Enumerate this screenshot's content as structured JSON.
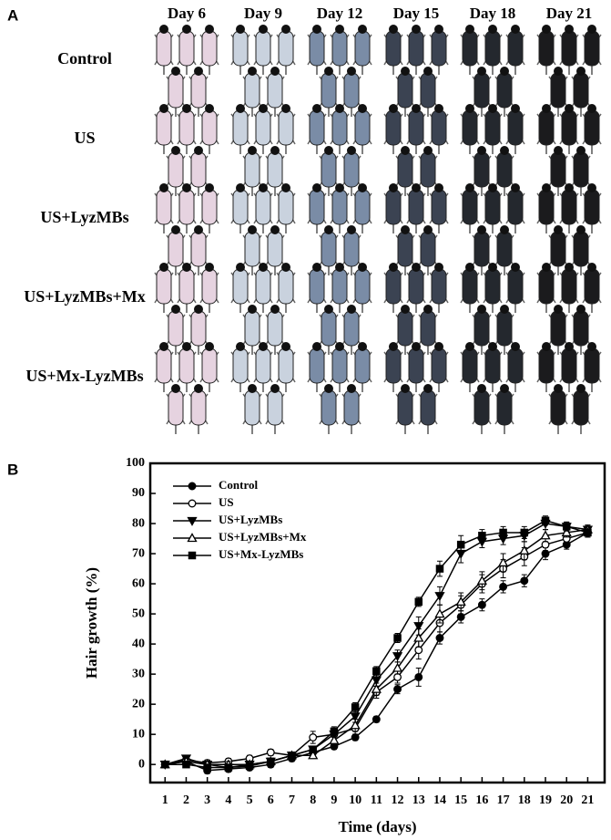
{
  "figure_panels": {
    "a_label": "A",
    "b_label": "B",
    "days": [
      "Day 6",
      "Day 9",
      "Day 12",
      "Day 15",
      "Day 18",
      "Day 21"
    ],
    "groups": [
      "Control",
      "US",
      "US+LyzMBs",
      "US+LyzMBs+Mx",
      "US+Mx-LyzMBs"
    ]
  },
  "chart_data": {
    "type": "line",
    "x_label": "Time (days)",
    "y_label": "Hair growth (%)",
    "x": [
      1,
      2,
      3,
      4,
      5,
      6,
      7,
      8,
      9,
      10,
      11,
      12,
      13,
      14,
      15,
      16,
      17,
      18,
      19,
      20,
      21
    ],
    "xlim": [
      0.3,
      21.8
    ],
    "xticks": [
      1,
      2,
      3,
      4,
      5,
      6,
      7,
      8,
      9,
      10,
      11,
      12,
      13,
      14,
      15,
      16,
      17,
      18,
      19,
      20,
      21
    ],
    "ylim": [
      -6,
      100
    ],
    "yticks": [
      0,
      10,
      20,
      30,
      40,
      50,
      60,
      70,
      80,
      90,
      100
    ],
    "legend": "upper left",
    "series": [
      {
        "name": "Control",
        "color": "#000000",
        "marker": "circle",
        "filled": true,
        "values": [
          0,
          1,
          -2,
          -1.5,
          -1,
          0,
          2,
          4,
          6,
          9,
          15,
          25,
          29,
          42,
          49,
          53,
          59,
          61,
          70,
          73,
          77
        ],
        "errors": [
          1,
          1,
          1,
          1,
          1,
          1,
          1,
          1,
          1,
          1,
          1,
          1.5,
          3,
          2,
          2,
          2,
          2,
          2,
          2,
          1.5,
          1.5
        ]
      },
      {
        "name": "US",
        "color": "#000000",
        "marker": "circle",
        "filled": false,
        "values": [
          0,
          1.5,
          0.5,
          1,
          2,
          4,
          3,
          9,
          10,
          12,
          24,
          29,
          38,
          47,
          53,
          60,
          65,
          69,
          73,
          75,
          77
        ],
        "errors": [
          1,
          1,
          1,
          1,
          1,
          1,
          1,
          2,
          2,
          2,
          2,
          2,
          3,
          3,
          3,
          3,
          3,
          3,
          2,
          2,
          1.5
        ]
      },
      {
        "name": "US+LyzMBs",
        "color": "#000000",
        "marker": "triangle-down",
        "filled": true,
        "values": [
          0,
          2,
          0,
          -1,
          0,
          1,
          3,
          5,
          10,
          16,
          28,
          36,
          46,
          56,
          70,
          74,
          75,
          76,
          80,
          79,
          78
        ],
        "errors": [
          1,
          1,
          1,
          1,
          1,
          1,
          1,
          1,
          2,
          2,
          2,
          2,
          3,
          3,
          3,
          2,
          2,
          2,
          2,
          1.5,
          1.5
        ]
      },
      {
        "name": "US+LyzMBs+Mx",
        "color": "#000000",
        "marker": "triangle-up",
        "filled": false,
        "values": [
          0,
          1,
          0,
          0,
          0,
          1,
          3,
          3,
          8,
          13,
          25,
          32,
          42,
          50,
          54,
          61,
          67,
          71,
          76,
          77,
          78
        ],
        "errors": [
          1,
          1,
          1,
          1,
          1,
          1,
          1,
          1,
          2,
          2,
          2,
          2,
          3,
          3,
          3,
          3,
          3,
          3,
          2,
          1.5,
          1.5
        ]
      },
      {
        "name": "US+Mx-LyzMBs",
        "color": "#000000",
        "marker": "square",
        "filled": true,
        "values": [
          0,
          0,
          -1,
          -1,
          -0.5,
          1,
          3,
          5,
          11,
          19,
          31,
          42,
          54,
          65,
          73,
          76,
          77,
          77,
          81,
          79,
          77
        ],
        "errors": [
          1,
          1,
          1,
          1,
          1,
          1,
          1,
          1,
          1.5,
          1.5,
          1.5,
          1.5,
          1.5,
          2.5,
          3,
          2,
          2,
          2,
          1.5,
          1.5,
          1.5
        ]
      }
    ]
  }
}
